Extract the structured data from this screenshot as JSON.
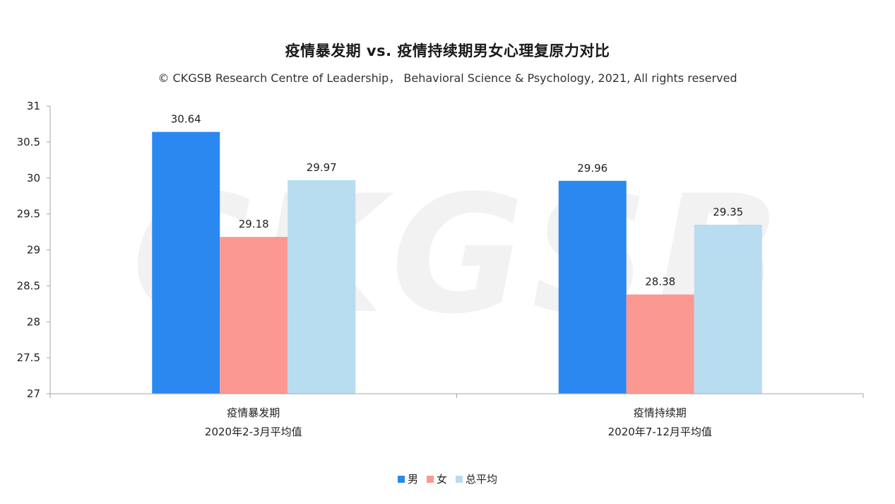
{
  "title": "疫情暴发期 vs. 疫情持续期男女心理复原力对比",
  "subtitle": "© CKGSB Research Centre of Leadership， Behavioral Science & Psychology, 2021, All rights reserved",
  "watermark": "CKGSB",
  "colors": {
    "male": "#2b88f0",
    "female": "#fa9891",
    "average": "#b8dcf0",
    "axis": "#a6a6a6",
    "text": "#222222"
  },
  "chart_data": {
    "type": "bar",
    "categories": [
      [
        "疫情暴发期",
        "2020年2-3月平均值"
      ],
      [
        "疫情持续期",
        "2020年7-12月平均值"
      ]
    ],
    "series": [
      {
        "name": "男",
        "values": [
          30.64,
          29.96
        ],
        "color": "#2b88f0"
      },
      {
        "name": "女",
        "values": [
          29.18,
          28.38
        ],
        "color": "#fa9891"
      },
      {
        "name": "总平均",
        "values": [
          29.97,
          29.35
        ],
        "color": "#b8dcf0"
      }
    ],
    "ylim": [
      27,
      31
    ],
    "yticks": [
      "27",
      "27.5",
      "28",
      "28.5",
      "29",
      "29.5",
      "30",
      "30.5",
      "31"
    ],
    "legend_position": "bottom-center",
    "grid": false
  }
}
